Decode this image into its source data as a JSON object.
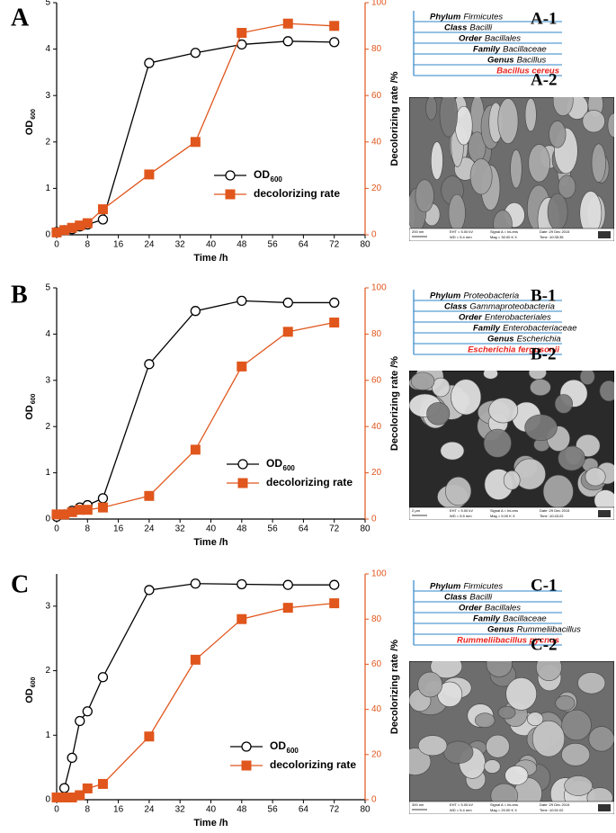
{
  "chart_data": [
    {
      "type": "line",
      "label": "A",
      "x_label": "Time /h",
      "y_label": "OD",
      "y_label_subscript": "600",
      "y2_label": "Decolorizing rate /%",
      "xlim": [
        0,
        80
      ],
      "xticks": [
        0,
        8,
        16,
        24,
        32,
        40,
        48,
        56,
        64,
        72,
        80
      ],
      "ylim": [
        0,
        5
      ],
      "yticks": [
        0,
        1,
        2,
        3,
        4,
        5
      ],
      "y2lim": [
        0,
        100
      ],
      "y2ticks": [
        0,
        20,
        40,
        60,
        80,
        100
      ],
      "y2_color": "#e0561c",
      "series": [
        {
          "name": "OD",
          "name_subscript": "600",
          "color": "#000000",
          "marker": "circle",
          "x": [
            0,
            2,
            4,
            6,
            8,
            12,
            24,
            36,
            48,
            60,
            72
          ],
          "values": [
            0.06,
            0.1,
            0.12,
            0.18,
            0.22,
            0.33,
            3.7,
            3.92,
            4.1,
            4.17,
            4.15
          ]
        },
        {
          "name": "decolorizing rate",
          "color": "#e0561c",
          "marker": "square",
          "axis": "y2",
          "x": [
            0,
            2,
            4,
            6,
            8,
            12,
            24,
            36,
            48,
            60,
            72
          ],
          "values": [
            1,
            2,
            3,
            4,
            5,
            11,
            26,
            40,
            87,
            91,
            90
          ]
        }
      ]
    },
    {
      "type": "line",
      "label": "B",
      "x_label": "Time /h",
      "y_label": "OD",
      "y_label_subscript": "600",
      "y2_label": "Decolorizing rate /%",
      "xlim": [
        0,
        80
      ],
      "xticks": [
        0,
        8,
        16,
        24,
        32,
        40,
        48,
        56,
        64,
        72,
        80
      ],
      "ylim": [
        0,
        5
      ],
      "yticks": [
        0,
        1,
        2,
        3,
        4,
        5
      ],
      "y2lim": [
        0,
        100
      ],
      "y2ticks": [
        0,
        20,
        40,
        60,
        80,
        100
      ],
      "y2_color": "#e0561c",
      "series": [
        {
          "name": "OD",
          "name_subscript": "600",
          "color": "#000000",
          "marker": "circle",
          "x": [
            0,
            2,
            4,
            6,
            8,
            12,
            24,
            36,
            48,
            60,
            72
          ],
          "values": [
            0.05,
            0.1,
            0.18,
            0.25,
            0.3,
            0.45,
            3.35,
            4.5,
            4.72,
            4.68,
            4.68
          ]
        },
        {
          "name": "decolorizing rate",
          "color": "#e0561c",
          "marker": "square",
          "axis": "y2",
          "x": [
            0,
            2,
            4,
            6,
            8,
            12,
            24,
            36,
            48,
            60,
            72
          ],
          "values": [
            2,
            2,
            3,
            4,
            4,
            5,
            10,
            30,
            66,
            81,
            85
          ]
        }
      ]
    },
    {
      "type": "line",
      "label": "C",
      "x_label": "Time /h",
      "y_label": "OD",
      "y_label_subscript": "600",
      "y2_label": "Decolorizing rate /%",
      "xlim": [
        0,
        80
      ],
      "xticks": [
        0,
        8,
        16,
        24,
        32,
        40,
        48,
        56,
        64,
        72,
        80
      ],
      "ylim": [
        0,
        3.5
      ],
      "yticks": [
        0,
        1,
        2,
        3
      ],
      "y2lim": [
        0,
        100
      ],
      "y2ticks": [
        0,
        20,
        40,
        60,
        80,
        100
      ],
      "y2_color": "#e0561c",
      "series": [
        {
          "name": "OD",
          "name_subscript": "600",
          "color": "#000000",
          "marker": "circle",
          "x": [
            2,
            4,
            6,
            8,
            12,
            24,
            36,
            48,
            60,
            72
          ],
          "values": [
            0.18,
            0.65,
            1.22,
            1.37,
            1.9,
            3.25,
            3.35,
            3.34,
            3.33,
            3.33
          ]
        },
        {
          "name": "decolorizing rate",
          "color": "#e0561c",
          "marker": "square",
          "axis": "y2",
          "x": [
            0,
            2,
            4,
            6,
            8,
            12,
            24,
            36,
            48,
            60,
            72
          ],
          "values": [
            1,
            1,
            1,
            2,
            5,
            7,
            28,
            62,
            80,
            85,
            87
          ]
        }
      ]
    }
  ],
  "taxonomy": [
    {
      "label": "A-1",
      "image_label": "A-2",
      "ranks": [
        {
          "rank": "Phylum",
          "name": "Firmicutes"
        },
        {
          "rank": "Class",
          "name": "Bacilli"
        },
        {
          "rank": "Order",
          "name": "Bacillales"
        },
        {
          "rank": "Family",
          "name": "Bacillaceae"
        },
        {
          "rank": "Genus",
          "name": "Bacillus"
        }
      ],
      "species": "Bacillus cereus",
      "image_info": [
        "200 nm",
        "EHT = 5.00 kV",
        "WD = 5.4 mm",
        "Signal A = InLens",
        "Mag = 30.00 K X",
        "Date :29 Dec 2015",
        "Time :10:35:35"
      ]
    },
    {
      "label": "B-1",
      "image_label": "B-2",
      "ranks": [
        {
          "rank": "Phylum",
          "name": "Proteobacteria"
        },
        {
          "rank": "Class",
          "name": "Gammaproteobacteria"
        },
        {
          "rank": "Order",
          "name": "Enterobacteriales"
        },
        {
          "rank": "Family",
          "name": "Enterobacteriaceae"
        },
        {
          "rank": "Genus",
          "name": "Escherichia"
        }
      ],
      "species": "Escherichia fergusonii",
      "image_info": [
        "2 μm",
        "EHT = 5.00 kV",
        "WD = 5.5 mm",
        "Signal A = InLens",
        "Mag = 5.00 K X",
        "Date :29 Dec 2015",
        "Time :10:43:22"
      ]
    },
    {
      "label": "C-1",
      "image_label": "C-2",
      "ranks": [
        {
          "rank": "Phylum",
          "name": "Firmicutes"
        },
        {
          "rank": "Class",
          "name": "Bacilli"
        },
        {
          "rank": "Order",
          "name": "Bacillales"
        },
        {
          "rank": "Family",
          "name": "Bacillaceae"
        },
        {
          "rank": "Genus",
          "name": "Rummeliibacillus"
        }
      ],
      "species": "Rummeliibacillus pycnus",
      "image_info": [
        "300 nm",
        "EHT = 5.00 kV",
        "WD = 5.4 mm",
        "Signal A = InLens",
        "Mag = 20.00 K X",
        "Date :29 Dec 2015",
        "Time :10:51:02"
      ]
    }
  ]
}
